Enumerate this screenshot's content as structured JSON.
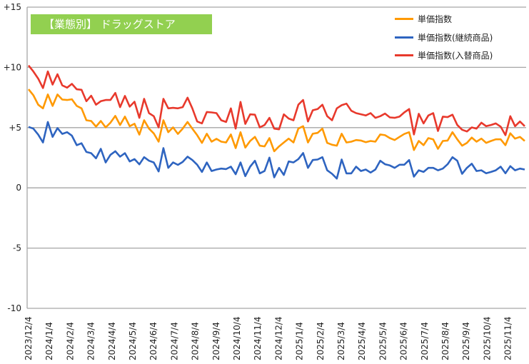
{
  "chart_data": {
    "type": "line",
    "title": "【業態別】 ドラッグストア",
    "xlabel": "",
    "ylabel": "",
    "ylim": [
      -10,
      15
    ],
    "yticks": [
      "+15",
      "+10",
      "+5",
      "0",
      "-5",
      "-10"
    ],
    "ytick_values": [
      15,
      10,
      5,
      0,
      -5,
      -10
    ],
    "grid": true,
    "legend_position": "top-right",
    "x_tick_labels": [
      "2023/12/4",
      "2024/1/4",
      "2024/2/4",
      "2024/3/4",
      "2024/4/4",
      "2024/5/4",
      "2024/6/4",
      "2024/7/4",
      "2024/8/4",
      "2024/9/4",
      "2024/10/4",
      "2024/11/4",
      "2024/12/4",
      "2025/1/4",
      "2025/2/4",
      "2025/3/4",
      "2025/4/4",
      "2025/5/4",
      "2025/6/4",
      "2025/7/4",
      "2025/8/4",
      "2025/9/4",
      "2025/10/4",
      "2025/11/4"
    ],
    "x_frequency": "weekly",
    "series": [
      {
        "name": "単価指数",
        "color": "#FF9900",
        "values": [
          8.18,
          7.69,
          6.9,
          6.6,
          7.75,
          6.8,
          7.75,
          7.33,
          7.29,
          7.35,
          6.8,
          6.6,
          5.61,
          5.55,
          5.08,
          5.55,
          5.02,
          5.41,
          5.97,
          5.22,
          5.91,
          5.12,
          5.32,
          4.42,
          5.61,
          4.92,
          4.52,
          3.83,
          5.61,
          4.62,
          5.02,
          4.48,
          4.92,
          5.47,
          4.92,
          4.37,
          3.73,
          4.49,
          3.83,
          4.07,
          3.83,
          3.77,
          4.43,
          3.3,
          4.62,
          3.34,
          3.89,
          4.23,
          3.5,
          3.44,
          4.13,
          3.04,
          3.44,
          3.77,
          4.09,
          3.77,
          4.92,
          5.12,
          3.77,
          4.49,
          4.56,
          4.92,
          3.73,
          3.58,
          3.5,
          4.49,
          3.77,
          3.83,
          3.97,
          3.93,
          3.79,
          3.89,
          3.83,
          4.43,
          4.37,
          4.13,
          3.97,
          4.23,
          4.47,
          4.62,
          3.14,
          3.89,
          3.54,
          4.13,
          4.03,
          3.24,
          3.89,
          3.93,
          4.62,
          4.03,
          3.5,
          3.73,
          4.17,
          3.83,
          4.09,
          3.73,
          3.89,
          4.03,
          4.03,
          3.54,
          4.53,
          4.09,
          4.23,
          3.89
        ]
      },
      {
        "name": "単価指数(継続商品)",
        "color": "#2E64C0",
        "values": [
          5.06,
          4.92,
          4.42,
          3.77,
          5.47,
          4.23,
          4.96,
          4.48,
          4.62,
          4.33,
          3.54,
          3.7,
          2.98,
          2.88,
          2.45,
          3.24,
          2.11,
          2.74,
          3.04,
          2.59,
          2.88,
          2.19,
          2.39,
          1.95,
          2.55,
          2.25,
          2.11,
          1.36,
          3.3,
          1.66,
          2.11,
          1.91,
          2.15,
          2.59,
          2.31,
          1.92,
          1.32,
          2.11,
          1.4,
          1.52,
          1.6,
          1.56,
          1.76,
          1.13,
          2.11,
          0.97,
          1.76,
          2.25,
          1.2,
          1.4,
          2.51,
          0.87,
          1.66,
          1.07,
          2.19,
          2.11,
          2.39,
          2.89,
          1.66,
          2.31,
          2.35,
          2.55,
          1.46,
          1.17,
          0.77,
          2.35,
          1.2,
          1.2,
          1.76,
          1.4,
          1.52,
          1.27,
          1.52,
          2.25,
          1.96,
          1.86,
          1.66,
          1.92,
          1.92,
          2.31,
          0.93,
          1.46,
          1.32,
          1.66,
          1.66,
          1.46,
          1.6,
          1.96,
          2.55,
          2.25,
          1.17,
          1.66,
          2.0,
          1.4,
          1.46,
          1.21,
          1.32,
          1.46,
          1.76,
          1.21,
          1.8,
          1.46,
          1.6,
          1.52
        ]
      },
      {
        "name": "単価指数(入替商品)",
        "color": "#E8392C",
        "values": [
          10.16,
          9.66,
          9.07,
          8.28,
          9.66,
          8.57,
          9.43,
          8.51,
          8.32,
          8.63,
          8.18,
          8.14,
          7.19,
          7.65,
          6.9,
          7.19,
          7.29,
          7.29,
          7.88,
          6.7,
          7.63,
          6.74,
          7.15,
          5.81,
          7.39,
          6.2,
          5.95,
          5.02,
          7.39,
          6.6,
          6.64,
          6.6,
          6.7,
          7.49,
          6.6,
          5.51,
          5.35,
          6.3,
          6.26,
          6.2,
          5.61,
          5.47,
          6.6,
          4.92,
          7.13,
          5.31,
          6.1,
          6.07,
          5.02,
          5.22,
          5.81,
          4.92,
          4.86,
          6.1,
          5.75,
          5.61,
          6.9,
          7.29,
          5.51,
          6.44,
          6.54,
          6.9,
          5.95,
          5.61,
          6.6,
          6.86,
          6.99,
          6.4,
          6.2,
          6.11,
          6.01,
          6.2,
          5.81,
          5.95,
          6.17,
          5.85,
          5.81,
          5.91,
          6.26,
          6.54,
          4.43,
          6.15,
          5.35,
          6.01,
          6.2,
          4.72,
          5.91,
          5.87,
          6.07,
          5.22,
          4.82,
          4.68,
          5.02,
          4.92,
          5.41,
          5.12,
          5.22,
          5.35,
          5.08,
          4.37,
          5.95,
          5.12,
          5.51,
          5.12
        ]
      }
    ]
  }
}
